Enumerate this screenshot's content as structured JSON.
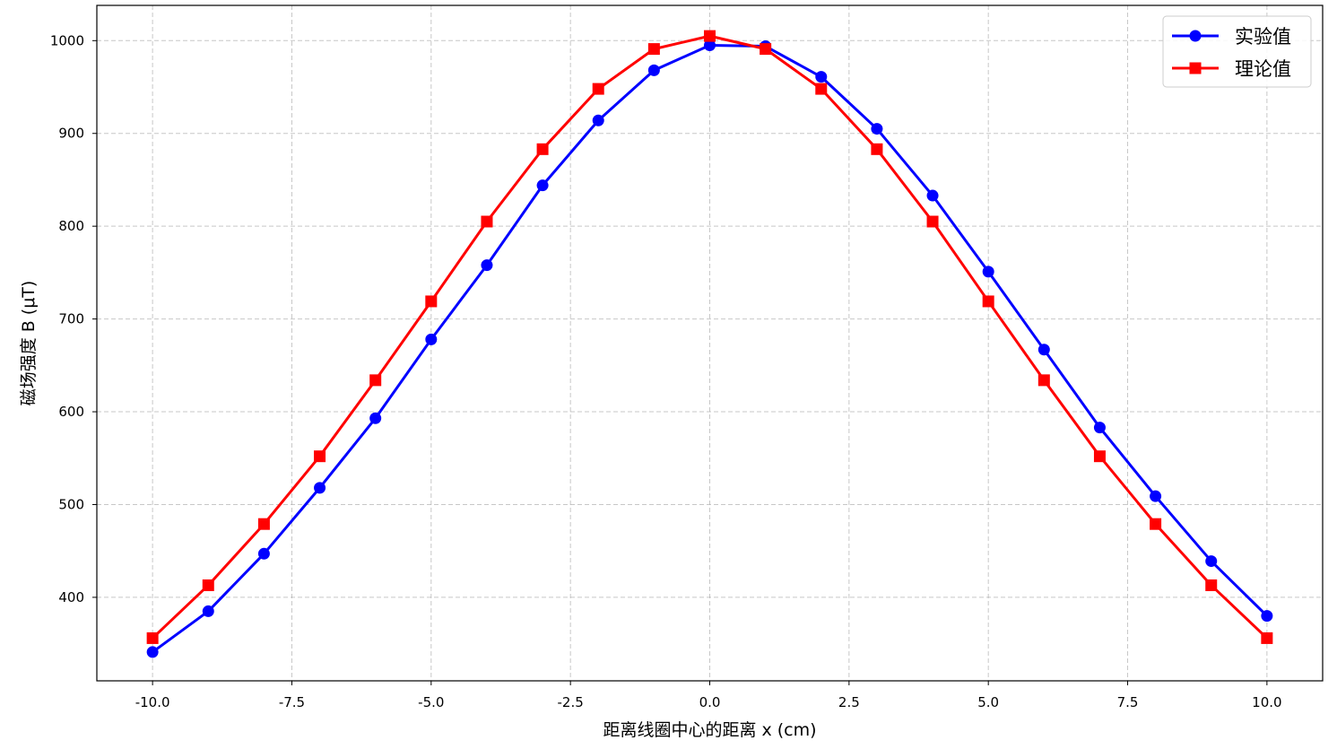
{
  "chart_data": {
    "type": "line",
    "xlabel": "距离线圈中心的距离 x (cm)",
    "ylabel": "磁场强度 B (μT)",
    "xlim": [
      -11,
      11
    ],
    "ylim": [
      310,
      1038
    ],
    "x": [
      -10,
      -9,
      -8,
      -7,
      -6,
      -5,
      -4,
      -3,
      -2,
      -1,
      0,
      1,
      2,
      3,
      4,
      5,
      6,
      7,
      8,
      9,
      10
    ],
    "x_ticks": [
      -10,
      -7.5,
      -5,
      -2.5,
      0,
      2.5,
      5,
      7.5,
      10
    ],
    "x_tick_labels": [
      "-10.0",
      "-7.5",
      "-5.0",
      "-2.5",
      "0.0",
      "2.5",
      "5.0",
      "7.5",
      "10.0"
    ],
    "y_ticks": [
      400,
      500,
      600,
      700,
      800,
      900,
      1000
    ],
    "y_tick_labels": [
      "400",
      "500",
      "600",
      "700",
      "800",
      "900",
      "1000"
    ],
    "grid": true,
    "legend_position": "top-right",
    "series": [
      {
        "name": "实验值",
        "color": "#0000ff",
        "marker": "circle",
        "values": [
          341,
          385,
          447,
          518,
          593,
          678,
          758,
          844,
          914,
          968,
          995,
          994,
          961,
          905,
          833,
          751,
          667,
          583,
          509,
          439,
          380
        ]
      },
      {
        "name": "理论值",
        "color": "#ff0000",
        "marker": "square",
        "values": [
          356,
          413,
          479,
          552,
          634,
          719,
          805,
          883,
          948,
          991,
          1005,
          991,
          948,
          883,
          805,
          719,
          634,
          552,
          479,
          413,
          356
        ]
      }
    ]
  }
}
